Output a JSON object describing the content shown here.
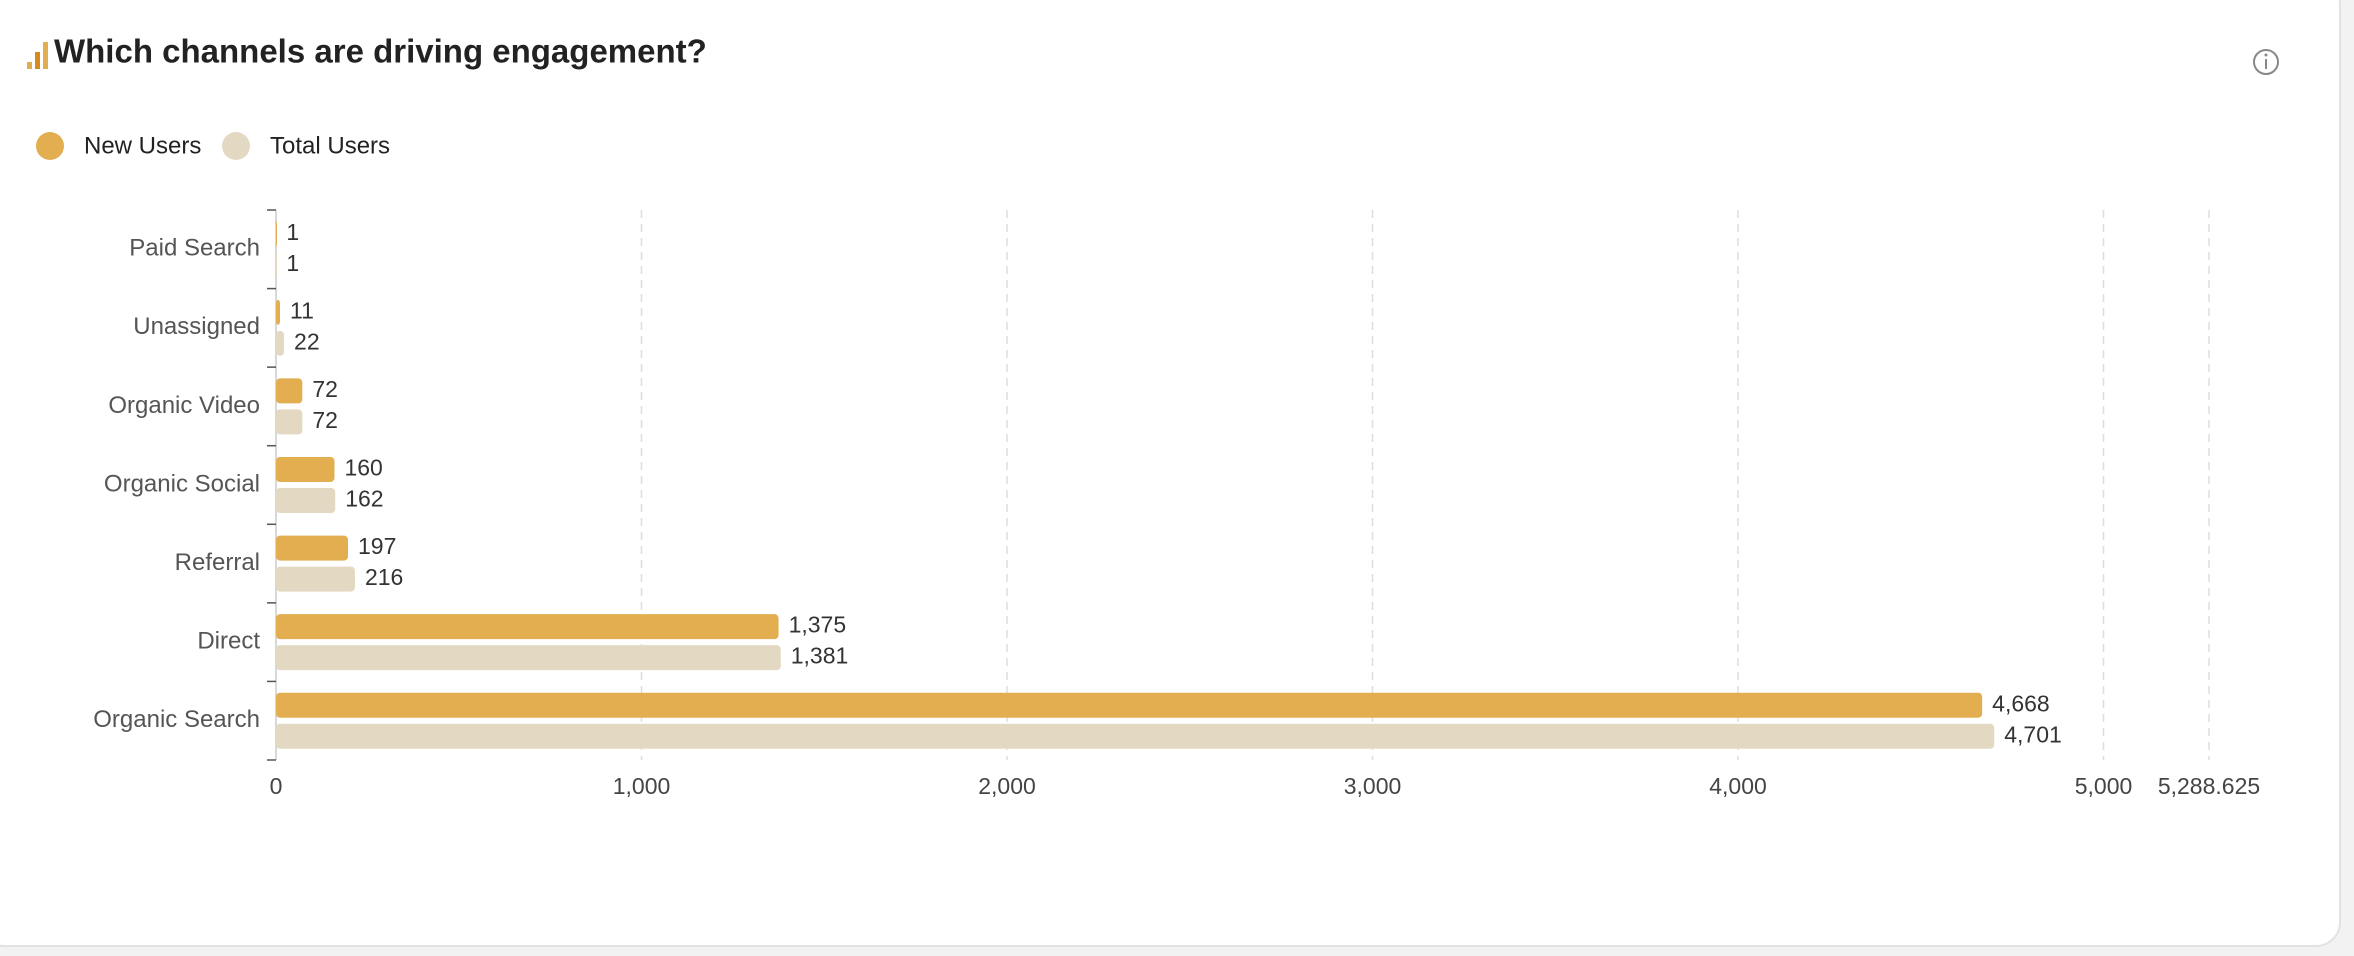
{
  "chart_data": {
    "type": "barh",
    "title": "Which channels are driving engagement?",
    "categories": [
      "Paid Search",
      "Unassigned",
      "Organic Video",
      "Organic Social",
      "Referral",
      "Direct",
      "Organic Search"
    ],
    "series": [
      {
        "name": "New Users",
        "color": "#e2ae50",
        "values": [
          1,
          11,
          72,
          160,
          197,
          1375,
          4668
        ],
        "value_labels": [
          "1",
          "11",
          "72",
          "160",
          "197",
          "1,375",
          "4,668"
        ]
      },
      {
        "name": "Total Users",
        "color": "#e3d9c2",
        "values": [
          1,
          22,
          72,
          162,
          216,
          1381,
          4701
        ],
        "value_labels": [
          "1",
          "22",
          "72",
          "162",
          "216",
          "1,381",
          "4,701"
        ]
      }
    ],
    "xlim": [
      0,
      5288.625
    ],
    "xticks": [
      0,
      {
        "value": 1000,
        "label": "1,000"
      },
      {
        "value": 2000,
        "label": "2,000"
      },
      {
        "value": 3000,
        "label": "3,000"
      },
      {
        "value": 4000,
        "label": "4,000"
      },
      {
        "value": 5000,
        "label": "5,000"
      },
      {
        "value": 5288.625,
        "label": "5,288.625"
      }
    ],
    "grid": true
  }
}
